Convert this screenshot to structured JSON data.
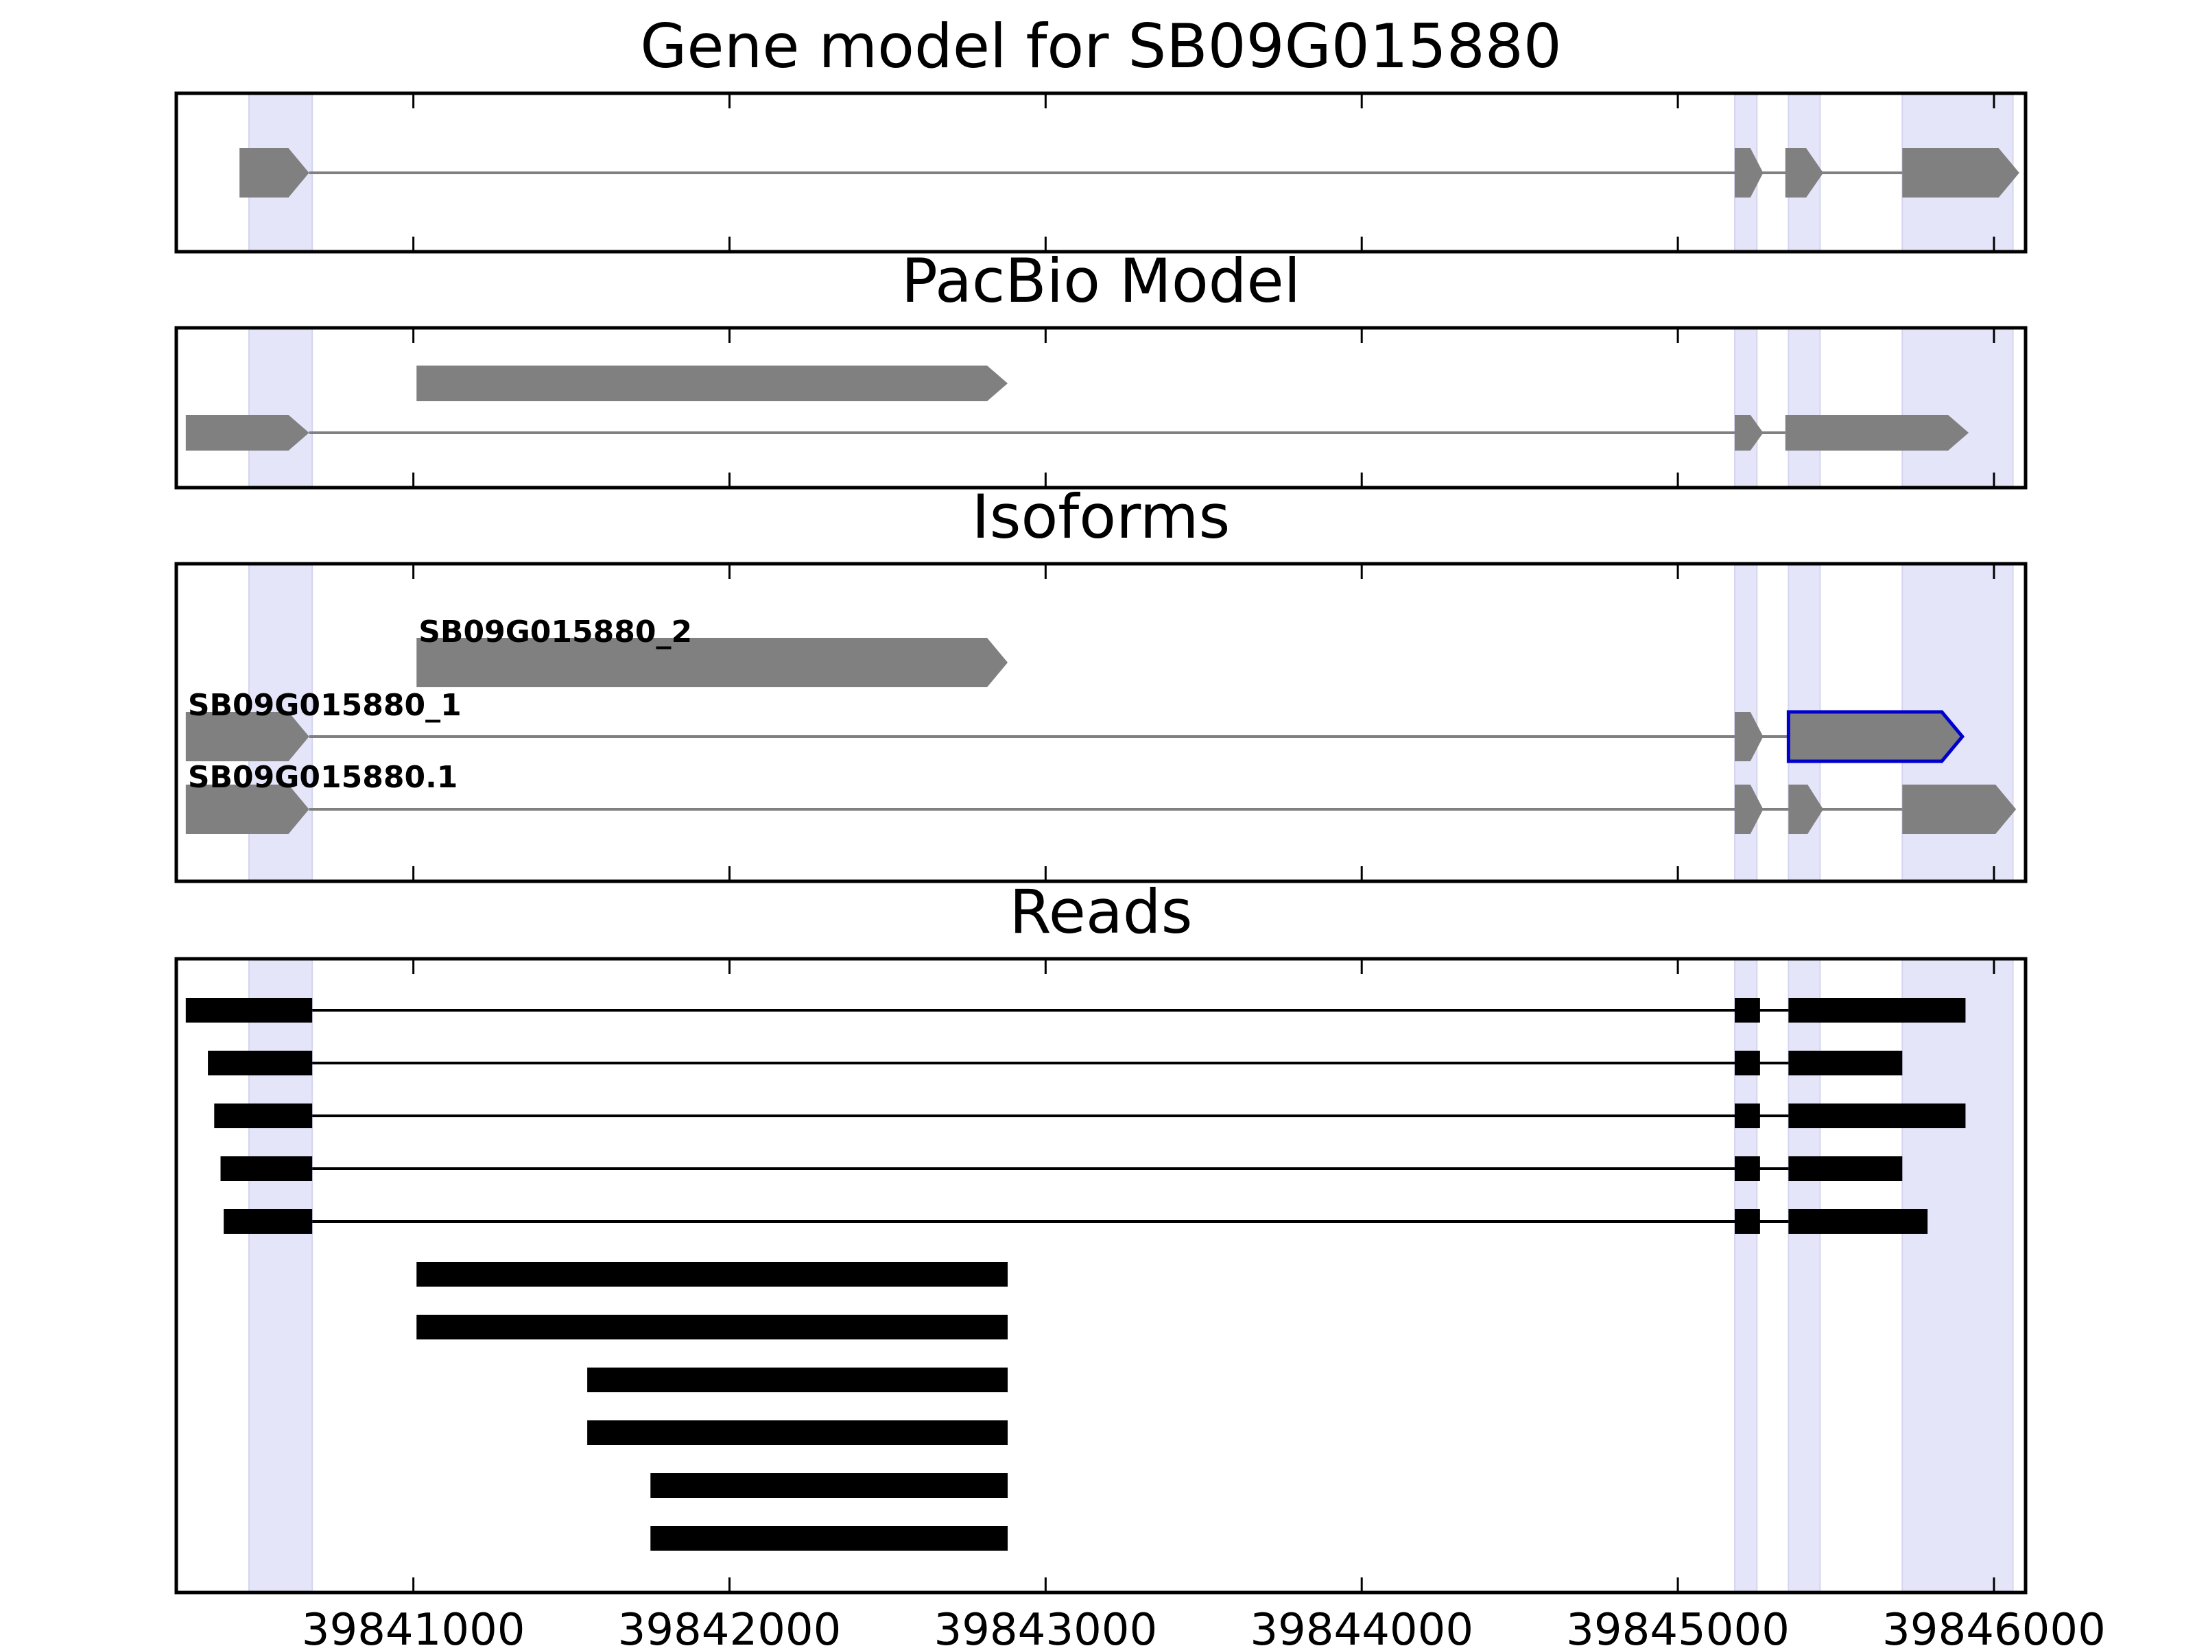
{
  "chart_data": {
    "type": "gene-structure",
    "x_axis": {
      "range": [
        39840250,
        39846100
      ],
      "ticks": [
        39841000,
        39842000,
        39843000,
        39844000,
        39845000,
        39846000
      ],
      "tick_labels": [
        "39841000",
        "39842000",
        "39843000",
        "39844000",
        "39845000",
        "39846000"
      ]
    },
    "highlight_regions": [
      [
        39840480,
        39840680
      ],
      [
        39845180,
        39845250
      ],
      [
        39845350,
        39845450
      ],
      [
        39845710,
        39846060
      ]
    ],
    "colors": {
      "gene_feature": "#808080",
      "selected_outline": "#0000cc",
      "read": "#000000",
      "highlight": "#e5e5fa",
      "frame": "#000000"
    },
    "panels": [
      {
        "title": "Gene model for SB09G015880",
        "kind": "model",
        "rows": [
          {
            "label": "",
            "selected": false,
            "exons": [
              [
                39840450,
                39840670
              ],
              [
                39845180,
                39845270
              ],
              [
                39845340,
                39845460
              ],
              [
                39845710,
                39846080
              ]
            ]
          }
        ]
      },
      {
        "title": "PacBio Model",
        "kind": "model",
        "rows": [
          {
            "label": "",
            "selected": false,
            "exons": [
              [
                39841010,
                39842880
              ]
            ]
          },
          {
            "label": "",
            "selected": false,
            "exons": [
              [
                39840280,
                39840670
              ],
              [
                39845180,
                39845270
              ],
              [
                39845340,
                39845920
              ]
            ]
          }
        ]
      },
      {
        "title": "Isoforms",
        "kind": "model",
        "rows": [
          {
            "label": "SB09G015880_2",
            "selected": false,
            "exons": [
              [
                39841010,
                39842880
              ]
            ]
          },
          {
            "label": "SB09G015880_1",
            "selected": true,
            "exons": [
              [
                39840280,
                39840670
              ],
              [
                39845180,
                39845270
              ],
              [
                39845350,
                39845900
              ]
            ]
          },
          {
            "label": "SB09G015880.1",
            "selected": false,
            "exons": [
              [
                39840280,
                39840670
              ],
              [
                39845180,
                39845270
              ],
              [
                39845350,
                39845460
              ],
              [
                39845710,
                39846070
              ]
            ]
          }
        ]
      },
      {
        "title": "Reads",
        "kind": "reads",
        "rows": [
          {
            "exons": [
              [
                39840280,
                39840680
              ],
              [
                39845180,
                39845260
              ],
              [
                39845350,
                39845910
              ]
            ]
          },
          {
            "exons": [
              [
                39840350,
                39840680
              ],
              [
                39845180,
                39845260
              ],
              [
                39845350,
                39845710
              ]
            ]
          },
          {
            "exons": [
              [
                39840370,
                39840680
              ],
              [
                39845180,
                39845260
              ],
              [
                39845350,
                39845910
              ]
            ]
          },
          {
            "exons": [
              [
                39840390,
                39840680
              ],
              [
                39845180,
                39845260
              ],
              [
                39845350,
                39845710
              ]
            ]
          },
          {
            "exons": [
              [
                39840400,
                39840680
              ],
              [
                39845180,
                39845260
              ],
              [
                39845350,
                39845790
              ]
            ]
          },
          {
            "exons": [
              [
                39841010,
                39842880
              ]
            ]
          },
          {
            "exons": [
              [
                39841010,
                39842880
              ]
            ]
          },
          {
            "exons": [
              [
                39841550,
                39842880
              ]
            ]
          },
          {
            "exons": [
              [
                39841550,
                39842880
              ]
            ]
          },
          {
            "exons": [
              [
                39841750,
                39842880
              ]
            ]
          },
          {
            "exons": [
              [
                39841750,
                39842880
              ]
            ]
          }
        ]
      }
    ]
  }
}
